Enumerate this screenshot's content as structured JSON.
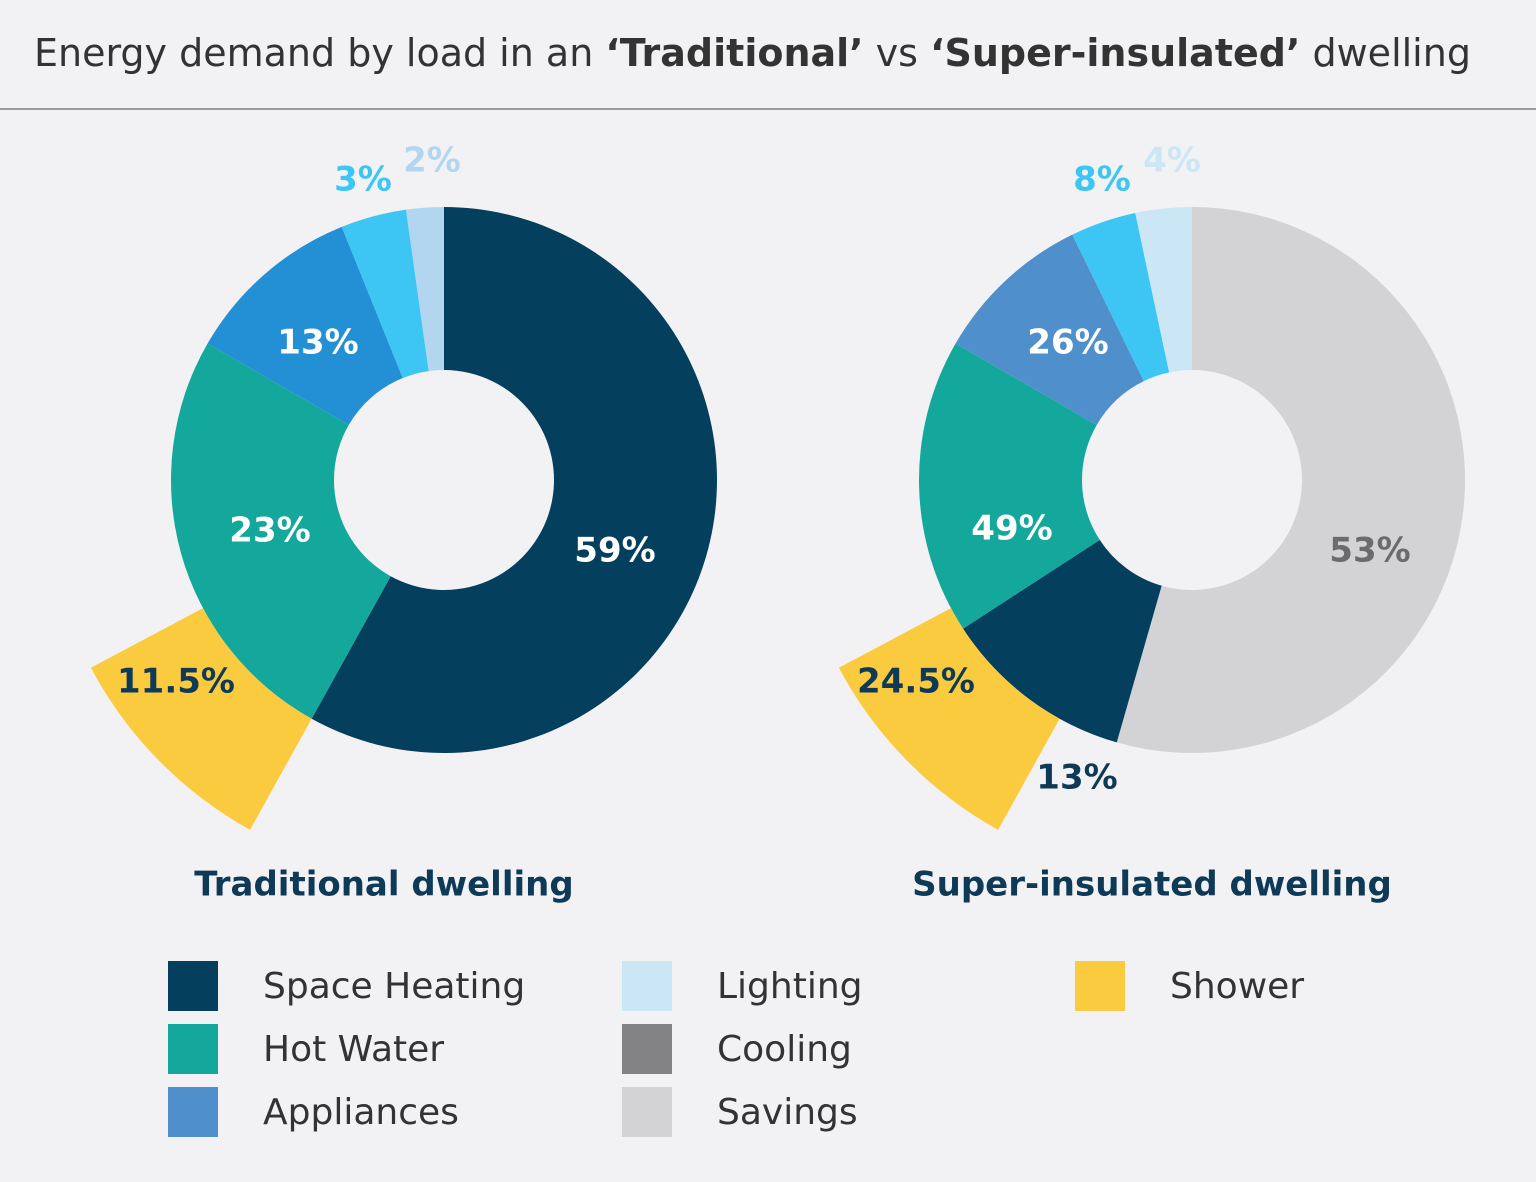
{
  "header": {
    "title_parts": [
      {
        "text": "Energy demand by load in an ",
        "bold": false
      },
      {
        "text": "‘Traditional’",
        "bold": true
      },
      {
        "text": " vs ",
        "bold": false
      },
      {
        "text": "‘Super-insulated’",
        "bold": true
      },
      {
        "text": " dwelling",
        "bold": false
      }
    ]
  },
  "colors": {
    "Space Heating": "#053f5e",
    "Hot Water": "#14a89c",
    "Appliances": "#4f8fcc",
    "Appliances (traditional)": "#2390d6",
    "Lighting": "#cbe7f6",
    "Lighting (traditional)": "#b3d6f0",
    "Cooling": "#3dc6f3",
    "Savings": "#d3d3d5",
    "Shower": "#fbcb3f",
    "Cooling legend swatch": "#838385"
  },
  "chart_data": [
    {
      "type": "pie",
      "title": "Traditional dwelling",
      "slices": [
        {
          "name": "Space Heating",
          "value": 59,
          "label": "59%",
          "label_color": "#ffffff"
        },
        {
          "name": "Hot Water",
          "value": 23,
          "label": "23%",
          "label_color": "#ffffff"
        },
        {
          "name": "Appliances",
          "value": 13,
          "label": "13%",
          "label_color": "#ffffff"
        },
        {
          "name": "Cooling",
          "value": 3,
          "label": "3%",
          "label_color": "#3dc6f3"
        },
        {
          "name": "Lighting",
          "value": 2,
          "label": "2%",
          "label_color": "#b3d6f0"
        }
      ],
      "sub_slice": {
        "name": "Shower",
        "value": 11.5,
        "label": "11.5%",
        "parent": "Hot Water",
        "label_color": "#0f3a57"
      }
    },
    {
      "type": "pie",
      "title": "Super-insulated dwelling",
      "slices": [
        {
          "name": "Savings",
          "value": 53,
          "label": "53%",
          "label_color": "#6b6b6d"
        },
        {
          "name": "Space Heating",
          "value": 13,
          "label": "13%",
          "label_color": "#0f3a57"
        },
        {
          "name": "Hot Water",
          "value": 49,
          "label": "49%",
          "label_color": "#ffffff"
        },
        {
          "name": "Appliances",
          "value": 26,
          "label": "26%",
          "label_color": "#ffffff"
        },
        {
          "name": "Cooling",
          "value": 8,
          "label": "8%",
          "label_color": "#3dc6f3"
        },
        {
          "name": "Lighting",
          "value": 4,
          "label": "4%",
          "label_color": "#cbe7f6"
        }
      ],
      "sub_slice": {
        "name": "Shower",
        "value": 24.5,
        "label": "24.5%",
        "parent": "Hot Water",
        "label_color": "#0f3a57"
      }
    }
  ],
  "legend": {
    "items": [
      {
        "label": "Space Heating",
        "color": "#053f5e"
      },
      {
        "label": "Hot Water",
        "color": "#14a89c"
      },
      {
        "label": "Appliances",
        "color": "#4f8fcc"
      },
      {
        "label": "Lighting",
        "color": "#cbe7f6"
      },
      {
        "label": "Cooling",
        "color": "#838385"
      },
      {
        "label": "Savings",
        "color": "#d3d3d5"
      },
      {
        "label": "Shower",
        "color": "#fbcb3f"
      }
    ]
  }
}
